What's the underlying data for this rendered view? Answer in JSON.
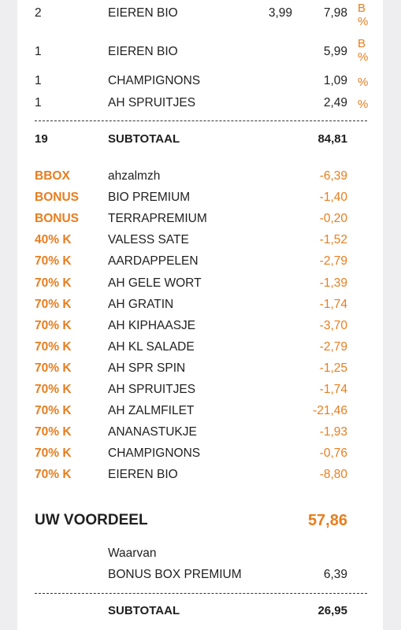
{
  "items": [
    {
      "qty": "2",
      "desc": "EIEREN BIO",
      "price": "3,99",
      "total": "7,98",
      "flag": [
        "B",
        "%"
      ]
    },
    {
      "qty": "1",
      "desc": "EIEREN BIO",
      "price": "",
      "total": "5,99",
      "flag": [
        "B",
        "%"
      ]
    },
    {
      "qty": "1",
      "desc": "CHAMPIGNONS",
      "price": "",
      "total": "1,09",
      "flag": [
        "%"
      ]
    },
    {
      "qty": "1",
      "desc": "AH SPRUITJES",
      "price": "",
      "total": "2,49",
      "flag": [
        "%"
      ]
    }
  ],
  "subtotal1": {
    "qty": "19",
    "label": "SUBTOTAAL",
    "total": "84,81"
  },
  "discounts": [
    {
      "code": "BBOX",
      "desc": "ahzalmzh",
      "amount": "-6,39"
    },
    {
      "code": "BONUS",
      "desc": "BIO PREMIUM",
      "amount": "-1,40"
    },
    {
      "code": "BONUS",
      "desc": "TERRAPREMIUM",
      "amount": "-0,20"
    },
    {
      "code": "40% K",
      "desc": "VALESS SATE",
      "amount": "-1,52"
    },
    {
      "code": "70% K",
      "desc": "AARDAPPELEN",
      "amount": "-2,79"
    },
    {
      "code": "70% K",
      "desc": "AH GELE WORT",
      "amount": "-1,39"
    },
    {
      "code": "70% K",
      "desc": "AH GRATIN",
      "amount": "-1,74"
    },
    {
      "code": "70% K",
      "desc": "AH KIPHAASJE",
      "amount": "-3,70"
    },
    {
      "code": "70% K",
      "desc": "AH KL SALADE",
      "amount": "-2,79"
    },
    {
      "code": "70% K",
      "desc": "AH SPR SPIN",
      "amount": "-1,25"
    },
    {
      "code": "70% K",
      "desc": "AH SPRUITJES",
      "amount": "-1,74"
    },
    {
      "code": "70% K",
      "desc": "AH ZALMFILET",
      "amount": "-21,46"
    },
    {
      "code": "70% K",
      "desc": "ANANASTUKJE",
      "amount": "-1,93"
    },
    {
      "code": "70% K",
      "desc": "CHAMPIGNONS",
      "amount": "-0,76"
    },
    {
      "code": "70% K",
      "desc": "EIEREN BIO",
      "amount": "-8,80"
    }
  ],
  "voordeel": {
    "label": "UW VOORDEEL",
    "total": "57,86"
  },
  "waarvan": {
    "label": "Waarvan",
    "item": "BONUS BOX PREMIUM",
    "amount": "6,39"
  },
  "subtotal2": {
    "label": "SUBTOTAAL",
    "total": "26,95"
  },
  "colors": {
    "accent": "#e87d1e",
    "text": "#1f1f1f",
    "background": "#eeeef0",
    "paper": "#ffffff"
  }
}
